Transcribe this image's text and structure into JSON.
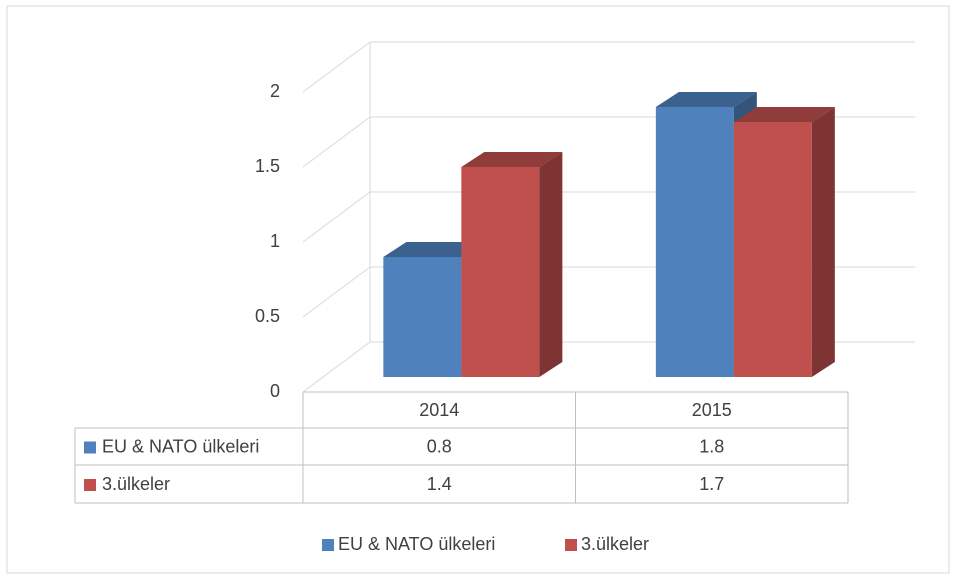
{
  "chart_data": {
    "type": "bar3d",
    "categories": [
      "2014",
      "2015"
    ],
    "series": [
      {
        "name": "EU & NATO ülkeleri",
        "color": "#4f81bd",
        "values": [
          0.8,
          1.8
        ]
      },
      {
        "name": "3.ülkeler",
        "color": "#c0504d",
        "values": [
          1.4,
          1.7
        ]
      }
    ],
    "ylim": [
      0,
      2
    ],
    "yticks": [
      0,
      0.5,
      1,
      1.5,
      2
    ],
    "grid": true,
    "legend": "bottom",
    "data_table": true
  }
}
